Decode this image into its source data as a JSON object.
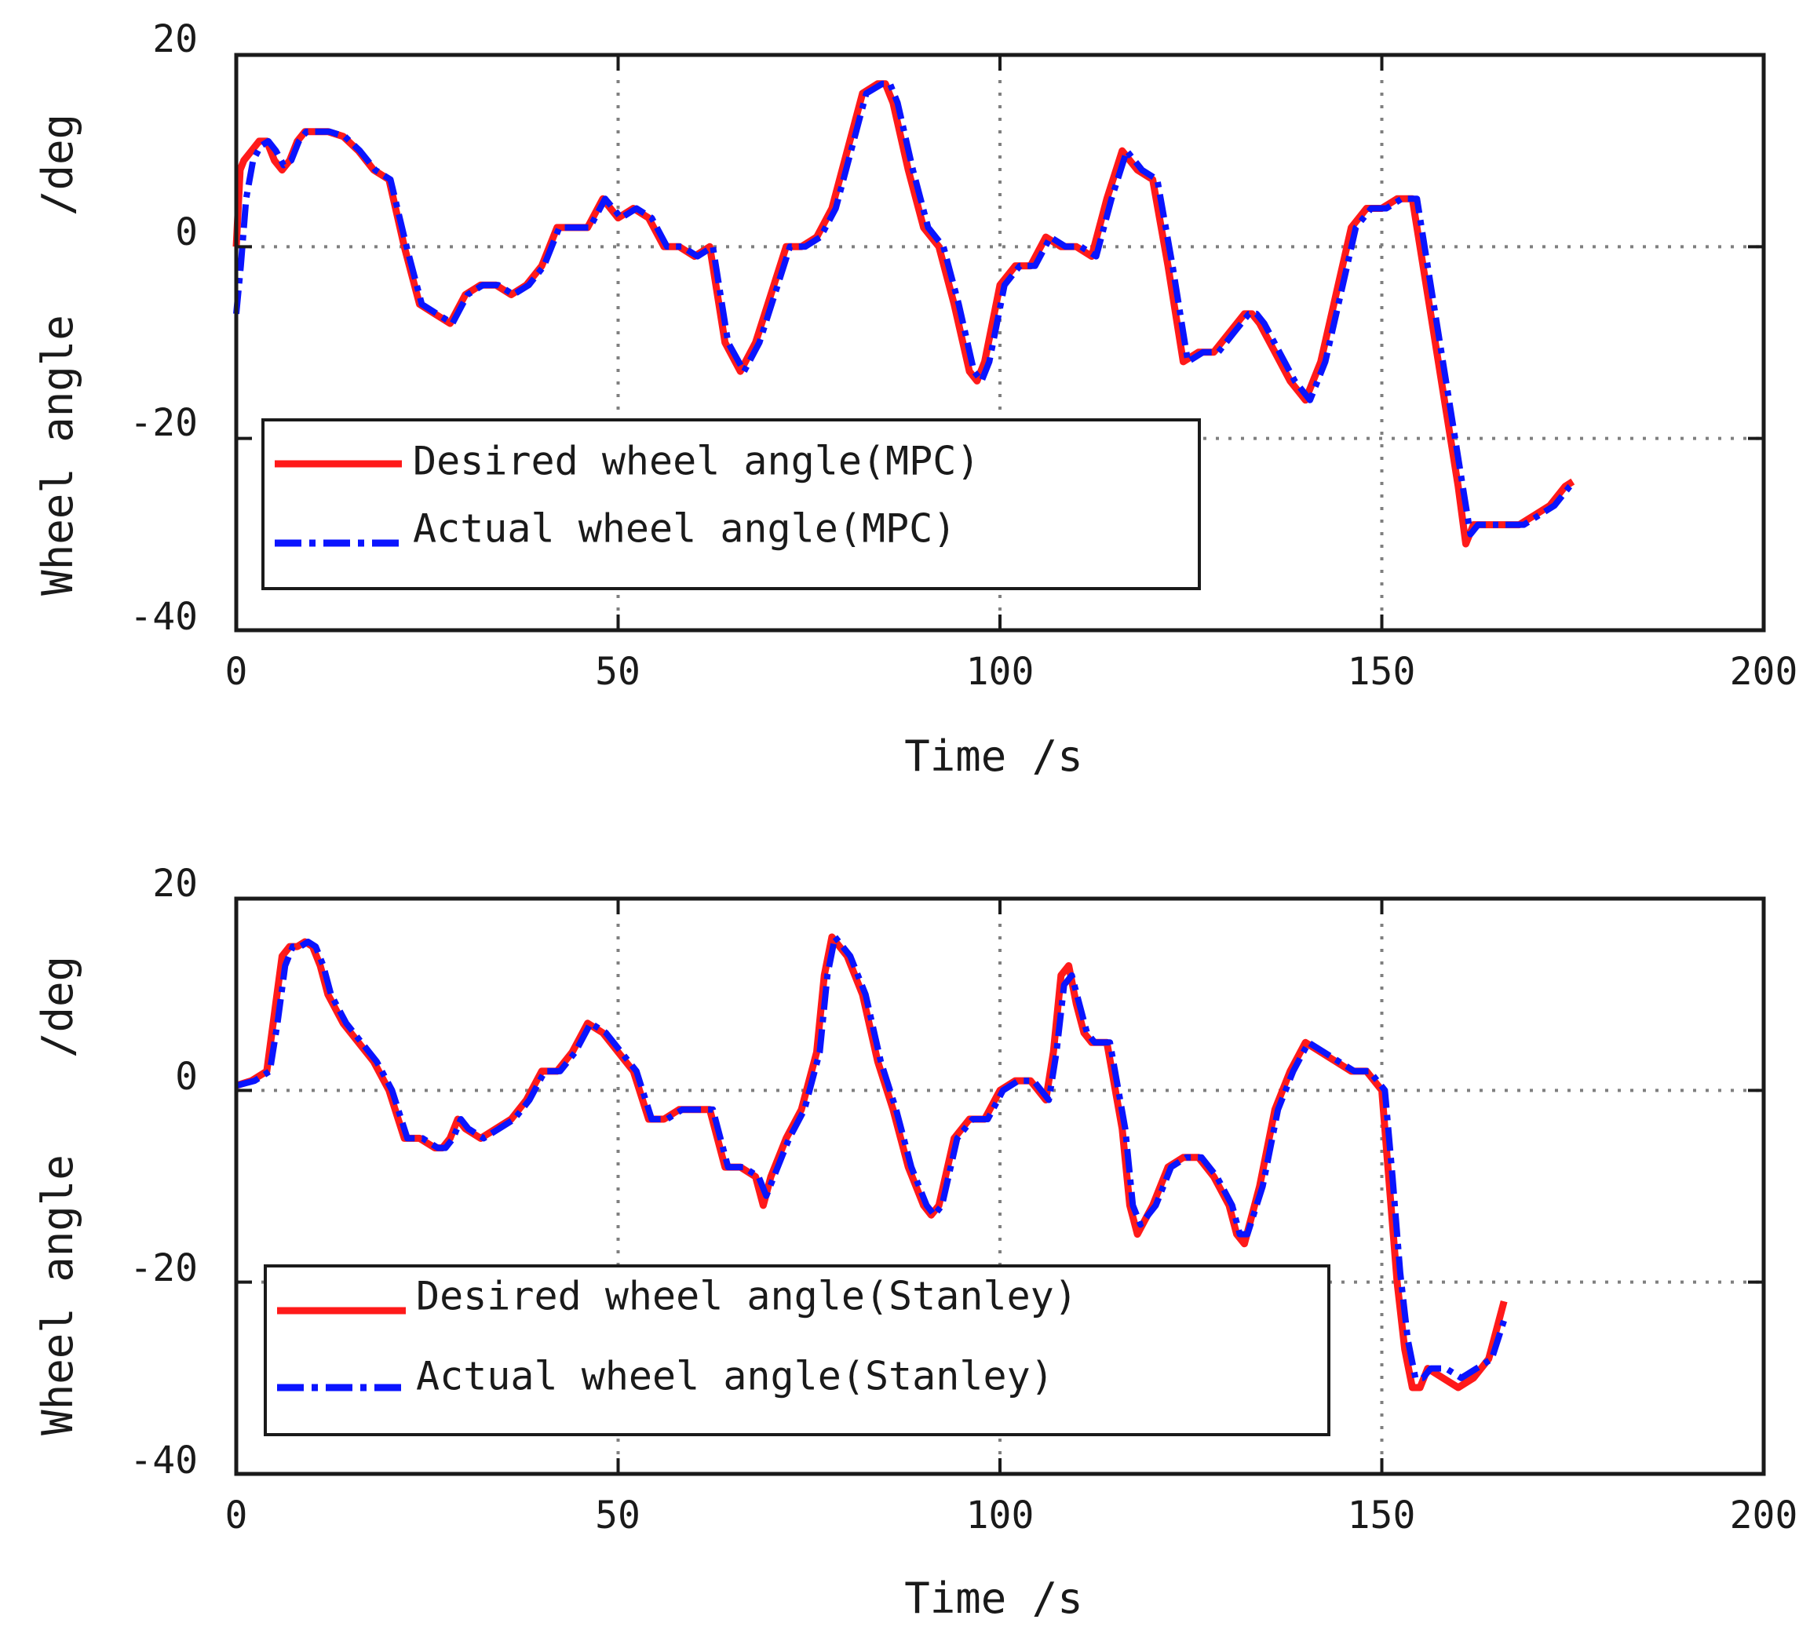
{
  "colors": {
    "desired": "#ff1a1a",
    "actual": "#0a14ff",
    "grid": "#7f7f7f",
    "axis": "#1a1a1a"
  },
  "chart_data": [
    {
      "type": "line",
      "xlabel": "Time  /s",
      "ylabel_left": "Wheel angle",
      "ylabel_right": "/deg",
      "xlim": [
        0,
        200
      ],
      "ylim": [
        -40,
        20
      ],
      "xticks": [
        "0",
        "50",
        "100",
        "150",
        "200"
      ],
      "yticks": [
        "20",
        "0",
        "-20",
        "-40"
      ],
      "grid": true,
      "legend_position": "lower-left",
      "series": [
        {
          "name": "Desired wheel angle(MPC)",
          "style": "solid",
          "color": "#ff1a1a",
          "x": [
            0,
            0.5,
            1,
            2,
            3,
            4,
            5,
            6,
            7,
            8,
            9,
            10,
            12,
            14,
            16,
            18,
            20,
            22,
            24,
            26,
            28,
            30,
            32,
            34,
            36,
            38,
            40,
            42,
            44,
            46,
            48,
            50,
            52,
            54,
            56,
            58,
            60,
            62,
            64,
            66,
            68,
            70,
            72,
            74,
            76,
            78,
            80,
            82,
            84,
            85,
            86,
            88,
            90,
            92,
            94,
            96,
            97,
            98,
            100,
            102,
            104,
            106,
            108,
            110,
            112,
            114,
            116,
            118,
            120,
            122,
            124,
            126,
            128,
            130,
            132,
            133,
            134,
            136,
            138,
            140,
            142,
            144,
            146,
            148,
            150,
            152,
            154,
            156,
            158,
            160,
            161,
            162,
            164,
            166,
            168,
            170,
            172,
            174,
            175
          ],
          "y": [
            0,
            8,
            9,
            10,
            11,
            11,
            9,
            8,
            9,
            11,
            12,
            12,
            12,
            11.5,
            10,
            8,
            7,
            0,
            -6,
            -7,
            -8,
            -5,
            -4,
            -4,
            -5,
            -4,
            -2,
            2,
            2,
            2,
            5,
            3,
            4,
            3,
            0,
            0,
            -1,
            0,
            -10,
            -13,
            -10,
            -5,
            0,
            0,
            1,
            4,
            10,
            16,
            17,
            17,
            15,
            8,
            2,
            0,
            -6,
            -13,
            -14,
            -12,
            -4,
            -2,
            -2,
            1,
            0,
            0,
            -1,
            5,
            10,
            8,
            7,
            -2,
            -12,
            -11,
            -11,
            -9,
            -7,
            -7,
            -8,
            -11,
            -14,
            -16,
            -12,
            -5,
            2,
            4,
            4,
            5,
            5,
            -5,
            -15,
            -25,
            -31,
            -29,
            -29,
            -29,
            -29,
            -28,
            -27,
            -25,
            -24.5
          ]
        },
        {
          "name": "Actual wheel angle(MPC)",
          "style": "dashdot",
          "color": "#0a14ff",
          "x": [
            0,
            0.6,
            1.3,
            2.2,
            3.2,
            4.2,
            5.2,
            6.2,
            7.2,
            8.2,
            9.2,
            10.2,
            12.2,
            14.2,
            16.2,
            18.2,
            20.2,
            22.3,
            24.3,
            26.3,
            28.3,
            30.3,
            32.3,
            34.3,
            36.3,
            38.3,
            40.3,
            42.3,
            44.3,
            46.3,
            48.3,
            50.4,
            52.4,
            54.4,
            56.4,
            58.4,
            60.4,
            62.4,
            64.4,
            66.5,
            68.5,
            70.5,
            72.5,
            74.5,
            76.5,
            78.5,
            80.5,
            82.5,
            84.6,
            85.6,
            86.6,
            88.6,
            90.6,
            92.6,
            94.6,
            96.6,
            97.6,
            98.6,
            100.6,
            102.6,
            104.6,
            106.6,
            108.6,
            110.6,
            112.6,
            114.6,
            116.6,
            118.6,
            120.6,
            122.6,
            124.6,
            126.6,
            128.6,
            130.6,
            132.6,
            133.6,
            134.6,
            136.6,
            138.6,
            140.6,
            142.6,
            144.6,
            146.6,
            148.6,
            150.6,
            152.6,
            154.6,
            156.6,
            158.6,
            160.6,
            161.6,
            162.6,
            164.6,
            166.6,
            168.6,
            170.6,
            172.6,
            174.6,
            175.3
          ],
          "y": [
            -7,
            -2,
            5,
            9,
            10.5,
            11,
            10,
            8.5,
            9,
            11,
            12,
            12,
            12,
            11.5,
            10,
            8,
            7,
            0,
            -6,
            -7,
            -8,
            -5,
            -4,
            -4,
            -5,
            -4,
            -2,
            2,
            2,
            2,
            5,
            3,
            4,
            3,
            0,
            0,
            -1,
            0,
            -10,
            -13,
            -10,
            -5,
            0,
            0,
            1,
            4,
            10,
            16,
            17,
            17,
            15,
            8,
            2,
            0,
            -6,
            -13,
            -14,
            -12,
            -4,
            -2,
            -2,
            1,
            0,
            0,
            -1,
            5,
            10,
            8,
            7,
            -2,
            -12,
            -11,
            -11,
            -9,
            -7,
            -7,
            -8,
            -11,
            -14,
            -16,
            -12,
            -5,
            2,
            4,
            4,
            5,
            5,
            -5,
            -15,
            -25,
            -30,
            -29,
            -29,
            -29,
            -29,
            -28,
            -27,
            -25,
            -24.5
          ]
        }
      ]
    },
    {
      "type": "line",
      "xlabel": "Time  /s",
      "ylabel_left": "Wheel angle",
      "ylabel_right": "/deg",
      "xlim": [
        0,
        200
      ],
      "ylim": [
        -40,
        20
      ],
      "xticks": [
        "0",
        "50",
        "100",
        "150",
        "200"
      ],
      "yticks": [
        "20",
        "0",
        "-20",
        "-40"
      ],
      "grid": true,
      "legend_position": "lower-left",
      "series": [
        {
          "name": "Desired wheel angle(Stanley)",
          "style": "solid",
          "color": "#ff1a1a",
          "x": [
            0,
            2,
            4,
            5,
            6,
            7,
            8,
            9,
            10,
            11,
            12,
            14,
            16,
            18,
            20,
            22,
            23,
            24,
            26,
            27,
            28,
            29,
            30,
            32,
            34,
            36,
            38,
            40,
            42,
            44,
            46,
            48,
            50,
            52,
            54,
            56,
            58,
            60,
            62,
            64,
            66,
            68,
            69,
            70,
            72,
            74,
            76,
            77,
            78,
            80,
            82,
            84,
            86,
            88,
            90,
            91,
            92,
            94,
            96,
            98,
            100,
            102,
            104,
            105,
            106,
            107,
            108,
            109,
            110,
            111,
            112,
            114,
            116,
            117,
            118,
            120,
            122,
            124,
            126,
            128,
            130,
            131,
            132,
            134,
            136,
            138,
            140,
            142,
            144,
            146,
            148,
            150,
            151,
            152,
            153,
            154,
            155,
            156,
            158,
            160,
            162,
            164,
            166
          ],
          "y": [
            0.5,
            1,
            2,
            8,
            14,
            15,
            15,
            15.5,
            15,
            13,
            10,
            7,
            5,
            3,
            0,
            -5,
            -5,
            -5,
            -6,
            -6,
            -5,
            -3,
            -4,
            -5,
            -4,
            -3,
            -1,
            2,
            2,
            4,
            7,
            6,
            4,
            2,
            -3,
            -3,
            -2,
            -2,
            -2,
            -8,
            -8,
            -9,
            -12,
            -9,
            -5,
            -2,
            4,
            12,
            16,
            14,
            10,
            3,
            -2,
            -8,
            -12,
            -13,
            -12,
            -5,
            -3,
            -3,
            0,
            1,
            1,
            0,
            -1,
            4,
            12,
            13,
            9,
            6,
            5,
            5,
            -4,
            -12,
            -15,
            -12,
            -8,
            -7,
            -7,
            -9,
            -12,
            -15,
            -16,
            -10,
            -2,
            2,
            5,
            4,
            3,
            2,
            2,
            0,
            -10,
            -20,
            -27,
            -31,
            -31,
            -29,
            -30,
            -31,
            -30,
            -28,
            -22
          ]
        },
        {
          "name": "Actual wheel angle(Stanley)",
          "style": "dashdot",
          "color": "#0a14ff",
          "x": [
            0,
            2.4,
            4.4,
            5.4,
            6.4,
            7.4,
            8.4,
            9.4,
            10.4,
            11.4,
            12.4,
            14.4,
            16.4,
            18.4,
            20.4,
            22.4,
            23.4,
            24.4,
            26.4,
            27.4,
            28.4,
            29.4,
            30.4,
            32.4,
            34.4,
            36.4,
            38.4,
            40.4,
            42.4,
            44.4,
            46.4,
            48.4,
            50.4,
            52.4,
            54.4,
            56.4,
            58.4,
            60.4,
            62.4,
            64.4,
            66.4,
            68.4,
            69.4,
            70.4,
            72.4,
            74.4,
            76.4,
            77.4,
            78.4,
            80.4,
            82.4,
            84.4,
            86.4,
            88.4,
            90.4,
            91.4,
            92.4,
            94.4,
            96.4,
            98.4,
            100.4,
            102.4,
            104.4,
            105.4,
            106.4,
            107.4,
            108.4,
            109.4,
            110.4,
            111.4,
            112.4,
            114.4,
            116.4,
            117.4,
            118.4,
            120.4,
            122.4,
            124.4,
            126.4,
            128.4,
            130.4,
            131.4,
            132.4,
            134.4,
            136.4,
            138.4,
            140.4,
            142.4,
            144.4,
            146.4,
            148.4,
            150.4,
            151.4,
            152.4,
            153.4,
            154.4,
            155.4,
            156.4,
            158.4,
            160.4,
            162.4,
            164.4,
            166
          ],
          "y": [
            0.5,
            1,
            2,
            7,
            13,
            15,
            15,
            15.5,
            15,
            13,
            10,
            7,
            5,
            3,
            0,
            -5,
            -5,
            -5,
            -6,
            -6,
            -5,
            -3,
            -4,
            -5,
            -4,
            -3,
            -1,
            2,
            2,
            4,
            7,
            6,
            4,
            2,
            -3,
            -3,
            -2,
            -2,
            -2,
            -8,
            -8,
            -9,
            -11,
            -9,
            -5,
            -2,
            4,
            12,
            16,
            14,
            10,
            3,
            -2,
            -8,
            -12,
            -13,
            -12,
            -5,
            -3,
            -3,
            0,
            1,
            1,
            0,
            -1,
            4,
            11,
            12,
            9,
            6,
            5,
            5,
            -4,
            -12,
            -14,
            -12,
            -8,
            -7,
            -7,
            -9,
            -12,
            -15,
            -15,
            -10,
            -2,
            2,
            5,
            4,
            3,
            2,
            2,
            0,
            -9,
            -19,
            -26,
            -30,
            -30,
            -29,
            -29,
            -30,
            -29,
            -28,
            -24
          ]
        }
      ]
    }
  ]
}
